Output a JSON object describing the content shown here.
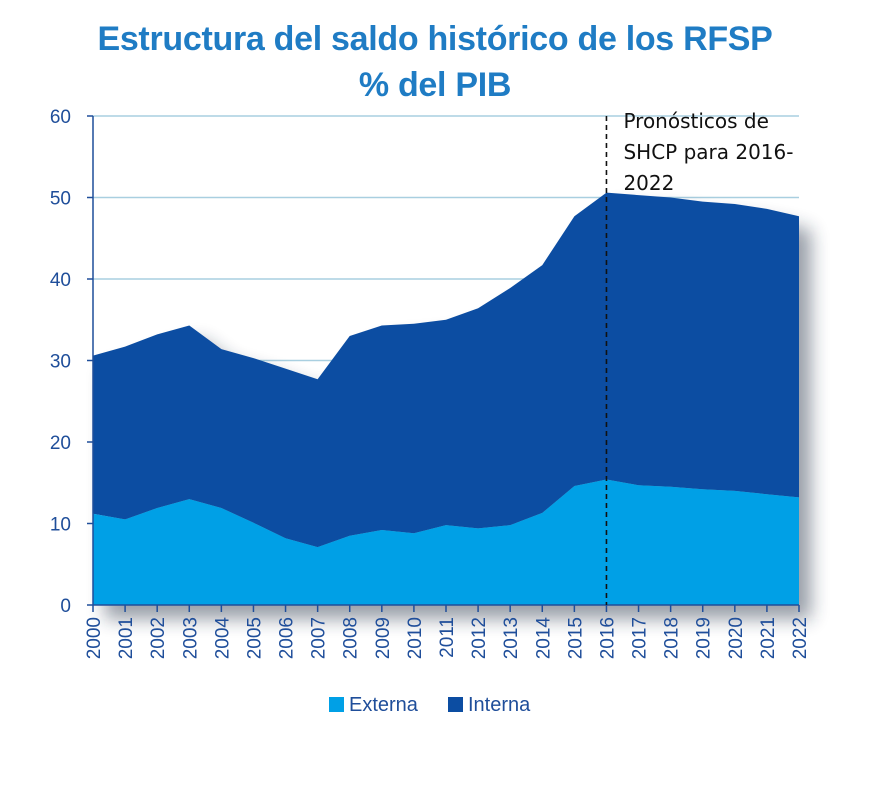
{
  "chart_data": {
    "type": "area",
    "stacked": true,
    "title": "Estructura del saldo histórico de los RFSP",
    "subtitle": "% del PIB",
    "categories": [
      "2000",
      "2001",
      "2002",
      "2003",
      "2004",
      "2005",
      "2006",
      "2007",
      "2008",
      "2009",
      "2010",
      "2011",
      "2012",
      "2013",
      "2014",
      "2015",
      "2016",
      "2017",
      "2018",
      "2019",
      "2020",
      "2021",
      "2022"
    ],
    "series": [
      {
        "name": "Externa",
        "color": "#00a0e6",
        "values": [
          11.2,
          10.5,
          11.9,
          13.0,
          11.9,
          10.1,
          8.2,
          7.1,
          8.5,
          9.2,
          8.8,
          9.8,
          9.4,
          9.8,
          11.3,
          14.6,
          15.4,
          14.7,
          14.5,
          14.2,
          14.0,
          13.6,
          13.2
        ]
      },
      {
        "name": "Interna",
        "color": "#0c4da2",
        "values": [
          19.4,
          21.2,
          21.3,
          21.3,
          19.5,
          20.2,
          20.8,
          20.6,
          24.5,
          25.1,
          25.7,
          25.2,
          27.0,
          29.1,
          30.4,
          33.1,
          35.2,
          35.6,
          35.5,
          35.3,
          35.2,
          35.0,
          34.5
        ]
      }
    ],
    "ylim": [
      0,
      60
    ],
    "yticks": [
      "0",
      "10",
      "20",
      "30",
      "40",
      "50",
      "60"
    ],
    "grid": true,
    "legend_position": "bottom",
    "annotation": {
      "lines": [
        "Pronósticos de",
        "SHCP para 2016-",
        "2022"
      ],
      "at_category": "2016"
    }
  }
}
